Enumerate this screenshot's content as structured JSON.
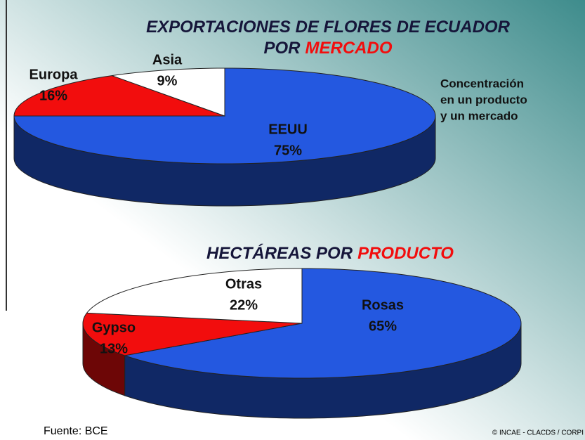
{
  "chart_data": [
    {
      "type": "pie",
      "title": [
        "EXPORTACIONES DE FLORES DE ECUADOR",
        "POR"
      ],
      "title_emphasis": "MERCADO",
      "categories": [
        "EEUU",
        "Europa",
        "Asia"
      ],
      "values": [
        75,
        16,
        9
      ],
      "value_labels": [
        "75%",
        "16%",
        "9%"
      ],
      "colors": [
        "#2458e0",
        "#f20d0d",
        "#ffffff"
      ]
    },
    {
      "type": "pie",
      "title": [
        "HECTÁREAS POR"
      ],
      "title_emphasis": "PRODUCTO",
      "categories": [
        "Rosas",
        "Gypso",
        "Otras"
      ],
      "values": [
        65,
        13,
        22
      ],
      "value_labels": [
        "65%",
        "13%",
        "22%"
      ],
      "colors": [
        "#2458e0",
        "#f20d0d",
        "#ffffff"
      ]
    }
  ],
  "annotation": [
    "Concentración",
    "en un producto",
    "y un mercado"
  ],
  "footer": {
    "source": "Fuente: BCE",
    "credit": "© INCAE - CLACDS / CORPI"
  }
}
